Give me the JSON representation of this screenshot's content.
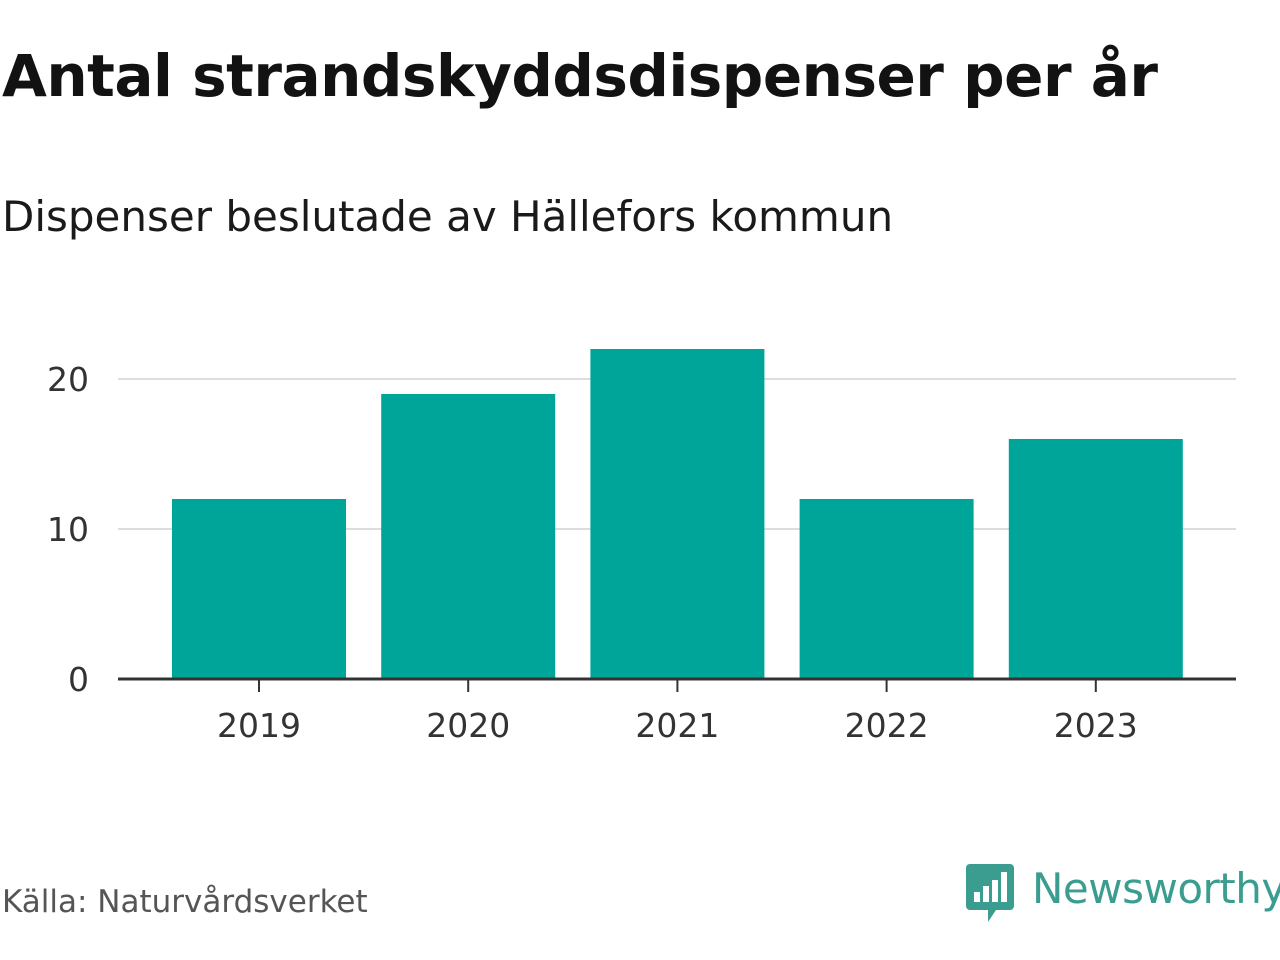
{
  "header": {
    "title": "Antal strandskyddsdispenser per år",
    "subtitle": "Dispenser beslutade av Hällefors kommun"
  },
  "footer": {
    "source": "Källa: Naturvårdsverket",
    "brand": "Newsworthy"
  },
  "colors": {
    "bar": "#00a59a",
    "grid": "#dddddd",
    "axis": "#333333",
    "brand": "#3a9d8f"
  },
  "icons": {
    "brand_logo": "newsworthy-logo-icon"
  },
  "chart_data": {
    "type": "bar",
    "categories": [
      "2019",
      "2020",
      "2021",
      "2022",
      "2023"
    ],
    "values": [
      12,
      19,
      22,
      12,
      16
    ],
    "ylim": [
      0,
      22
    ],
    "yticks": [
      0,
      10,
      20
    ],
    "grid": true,
    "legend": "none"
  }
}
